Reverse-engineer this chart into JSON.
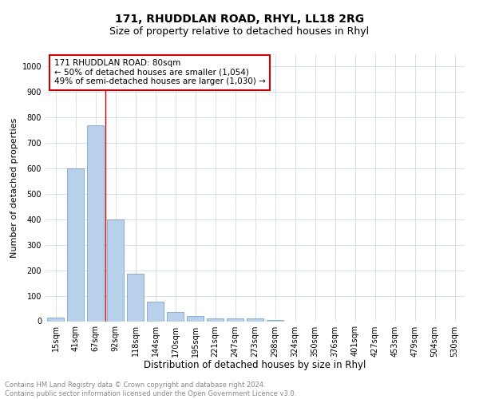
{
  "title1": "171, RHUDDLAN ROAD, RHYL, LL18 2RG",
  "title2": "Size of property relative to detached houses in Rhyl",
  "xlabel": "Distribution of detached houses by size in Rhyl",
  "ylabel": "Number of detached properties",
  "categories": [
    "15sqm",
    "41sqm",
    "67sqm",
    "92sqm",
    "118sqm",
    "144sqm",
    "170sqm",
    "195sqm",
    "221sqm",
    "247sqm",
    "273sqm",
    "298sqm",
    "324sqm",
    "350sqm",
    "376sqm",
    "401sqm",
    "427sqm",
    "453sqm",
    "479sqm",
    "504sqm",
    "530sqm"
  ],
  "values": [
    15,
    600,
    770,
    400,
    187,
    78,
    35,
    20,
    12,
    12,
    10,
    6,
    0,
    0,
    0,
    0,
    0,
    0,
    0,
    0,
    0
  ],
  "bar_color": "#b8d0ea",
  "bar_edge_color": "#6699cc",
  "vline_x": 2.5,
  "vline_color": "#cc0000",
  "annotation_text": "171 RHUDDLAN ROAD: 80sqm\n← 50% of detached houses are smaller (1,054)\n49% of semi-detached houses are larger (1,030) →",
  "annotation_box_color": "#ffffff",
  "annotation_box_edge": "#cc0000",
  "ylim": [
    0,
    1050
  ],
  "yticks": [
    0,
    100,
    200,
    300,
    400,
    500,
    600,
    700,
    800,
    900,
    1000
  ],
  "bg_color": "#ffffff",
  "grid_color": "#c8d4e8",
  "footer_text": "Contains HM Land Registry data © Crown copyright and database right 2024.\nContains public sector information licensed under the Open Government Licence v3.0.",
  "title1_fontsize": 10,
  "title2_fontsize": 9,
  "xlabel_fontsize": 8.5,
  "ylabel_fontsize": 8,
  "tick_fontsize": 7,
  "annotation_fontsize": 7.5,
  "footer_fontsize": 6
}
